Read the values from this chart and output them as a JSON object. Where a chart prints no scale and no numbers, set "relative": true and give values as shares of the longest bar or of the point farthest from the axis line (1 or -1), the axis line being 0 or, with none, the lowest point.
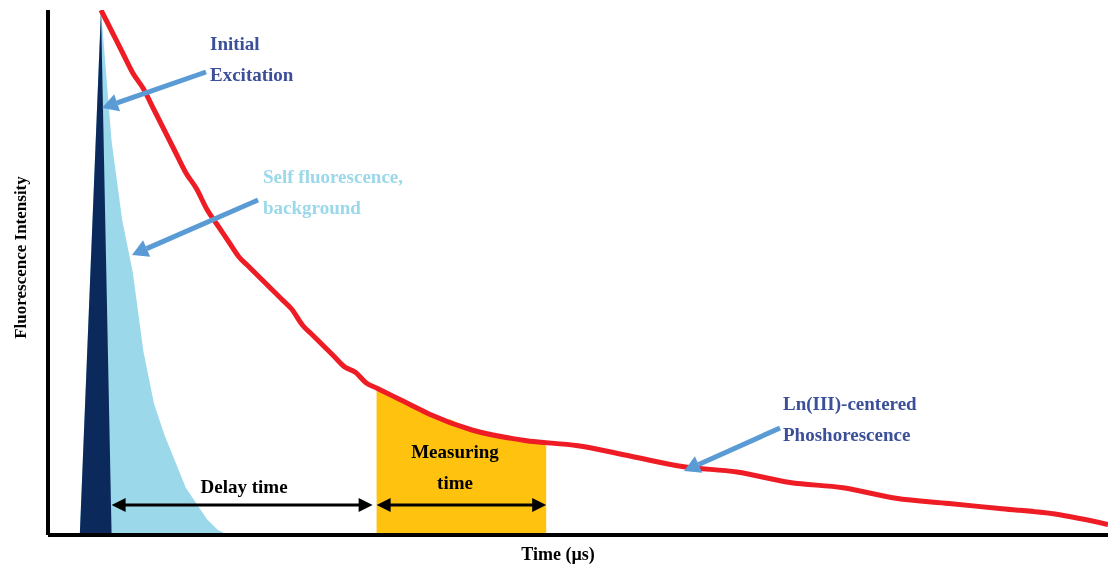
{
  "chart_data": {
    "type": "line",
    "relative": true,
    "xlabel": "Time (µs)",
    "ylabel": "Fluorescence Intensity",
    "categories": [
      null,
      null,
      null,
      null,
      null,
      null,
      null,
      null,
      null,
      null,
      null,
      null,
      null,
      null,
      null,
      null,
      null,
      null,
      null,
      null,
      null,
      null,
      null,
      null,
      null,
      null,
      null,
      null,
      null,
      null,
      null,
      null,
      null,
      null,
      null,
      null,
      null,
      null,
      null,
      null,
      null,
      null,
      null,
      null,
      null,
      null,
      null,
      null,
      null,
      null,
      null,
      null,
      null,
      null,
      null,
      null,
      null,
      null,
      null,
      null,
      null,
      null,
      null,
      null,
      null,
      null,
      null,
      null,
      null,
      null,
      null,
      null,
      null,
      null,
      null,
      null,
      null,
      null,
      null,
      null,
      null,
      null,
      null,
      null,
      null,
      null,
      null,
      null,
      null,
      null,
      null,
      null,
      null,
      null,
      null,
      null,
      null,
      null,
      null,
      null,
      null
    ],
    "series": [
      {
        "name": "Self fluorescence, background",
        "type": "area",
        "color": "#9ad8ea",
        "values": [
          null,
          null,
          null,
          0,
          0.5,
          1,
          0.75,
          0.6,
          0.5,
          0.35,
          0.25,
          0.19,
          0.14,
          0.09,
          0.06,
          0.03,
          0.01,
          0,
          null,
          null,
          null,
          null,
          null,
          null,
          null,
          null,
          null,
          null,
          null,
          null,
          null,
          null,
          null,
          null,
          null,
          null,
          null,
          null,
          null,
          null,
          null,
          null,
          null,
          null,
          null,
          null,
          null,
          null,
          null,
          null,
          null,
          null,
          null,
          null,
          null,
          null,
          null,
          null,
          null,
          null,
          null,
          null,
          null,
          null,
          null,
          null,
          null,
          null,
          null,
          null,
          null,
          null,
          null,
          null,
          null,
          null,
          null,
          null,
          null,
          null,
          null,
          null,
          null,
          null,
          null,
          null,
          null,
          null,
          null,
          null,
          null,
          null,
          null,
          null,
          null,
          null,
          null,
          null,
          null,
          null,
          null
        ]
      },
      {
        "name": "Initial Excitation",
        "type": "area",
        "color": "#0b2a5b",
        "values": [
          null,
          null,
          null,
          0,
          0.5,
          1,
          0,
          null,
          null,
          null,
          null,
          null,
          null,
          null,
          null,
          null,
          null,
          null,
          null,
          null,
          null,
          null,
          null,
          null,
          null,
          null,
          null,
          null,
          null,
          null,
          null,
          null,
          null,
          null,
          null,
          null,
          null,
          null,
          null,
          null,
          null,
          null,
          null,
          null,
          null,
          null,
          null,
          null,
          null,
          null,
          null,
          null,
          null,
          null,
          null,
          null,
          null,
          null,
          null,
          null,
          null,
          null,
          null,
          null,
          null,
          null,
          null,
          null,
          null,
          null,
          null,
          null,
          null,
          null,
          null,
          null,
          null,
          null,
          null,
          null,
          null,
          null,
          null,
          null,
          null,
          null,
          null,
          null,
          null,
          null,
          null,
          null,
          null,
          null,
          null,
          null,
          null,
          null,
          null,
          null,
          null
        ]
      },
      {
        "name": "Measuring time",
        "type": "area",
        "color": "#ffc20e",
        "values": [
          null,
          null,
          null,
          null,
          null,
          null,
          null,
          null,
          null,
          null,
          null,
          null,
          null,
          null,
          null,
          null,
          null,
          null,
          null,
          null,
          null,
          null,
          null,
          null,
          null,
          null,
          null,
          null,
          null,
          null,
          null,
          0.28,
          0.27,
          0.26,
          0.25,
          0.24,
          0.23,
          0.22,
          0.22,
          0.21,
          0.2,
          0.2,
          0.19,
          0.19,
          0.18,
          0.18,
          0.18,
          0.17,
          null,
          null,
          null,
          null,
          null,
          null,
          null,
          null,
          null,
          null,
          null,
          null,
          null,
          null,
          null,
          null,
          null,
          null,
          null,
          null,
          null,
          null,
          null,
          null,
          null,
          null,
          null,
          null,
          null,
          null,
          null,
          null,
          null,
          null,
          null,
          null,
          null,
          null,
          null,
          null,
          null,
          null,
          null,
          null,
          null,
          null,
          null,
          null,
          null,
          null,
          null,
          null,
          null
        ]
      },
      {
        "name": "Ln(III)-centered Phoshorescence",
        "color": "#ee1c25",
        "values": [
          null,
          null,
          null,
          null,
          null,
          1,
          0.96,
          0.92,
          0.88,
          0.85,
          0.81,
          0.77,
          0.73,
          0.69,
          0.66,
          0.62,
          0.59,
          0.56,
          0.53,
          0.51,
          0.49,
          0.47,
          0.45,
          0.43,
          0.4,
          0.38,
          0.36,
          0.34,
          0.32,
          0.31,
          0.29,
          0.28,
          0.27,
          0.26,
          0.25,
          null,
          0.23,
          null,
          null,
          null,
          0.2,
          null,
          null,
          null,
          null,
          0.18,
          null,
          null,
          null,
          null,
          0.17,
          null,
          null,
          null,
          null,
          0.15,
          null,
          null,
          null,
          null,
          0.13,
          null,
          null,
          null,
          null,
          0.12,
          null,
          null,
          null,
          null,
          0.1,
          null,
          null,
          null,
          null,
          0.09,
          null,
          null,
          null,
          null,
          0.07,
          null,
          null,
          null,
          null,
          0.06,
          null,
          null,
          null,
          null,
          0.05,
          null,
          null,
          null,
          null,
          0.04,
          null,
          null,
          null,
          null,
          0.02
        ]
      }
    ],
    "annotations": [
      "Delay time"
    ]
  }
}
